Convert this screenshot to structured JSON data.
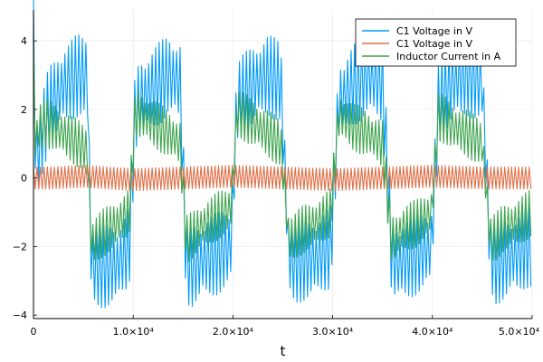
{
  "chart_data": {
    "type": "line",
    "title": "",
    "xlabel": "t",
    "ylabel": "",
    "xlim": [
      0,
      50000
    ],
    "ylim": [
      -4.1,
      4.9
    ],
    "xticks": [
      0,
      10000,
      20000,
      30000,
      40000,
      50000
    ],
    "xtick_labels": [
      "0",
      "1.0×10⁴",
      "2.0×10⁴",
      "3.0×10⁴",
      "4.0×10⁴",
      "5.0×10⁴"
    ],
    "yticks": [
      -4,
      -2,
      0,
      2,
      4
    ],
    "ytick_labels": [
      "−4",
      "−2",
      "0",
      "2",
      "4"
    ],
    "grid": true,
    "legend_position": "top-right",
    "series": [
      {
        "name": "C1 Voltage in V",
        "color": "#009af9",
        "oscillation_amplitude": 1.2,
        "x": [
          0,
          200,
          500,
          1500,
          3000,
          4500,
          5400,
          5800,
          6200,
          7000,
          8500,
          9600,
          10200,
          10800,
          12000,
          13500,
          14700,
          15300,
          15800,
          16500,
          17500,
          18500,
          19800,
          20400,
          21000,
          22000,
          23500,
          24800,
          25600,
          26200,
          27000,
          28500,
          29800,
          30600,
          31200,
          32000,
          33500,
          35000,
          35900,
          36400,
          37000,
          38500,
          39900,
          40600,
          41200,
          42000,
          43500,
          45000,
          45800,
          46400,
          47000,
          48500,
          49500,
          50000
        ],
        "y": [
          4.5,
          0.6,
          0.8,
          2.0,
          2.7,
          3.0,
          3.0,
          -2.5,
          -2.6,
          -2.6,
          -2.5,
          -2.0,
          2.0,
          2.3,
          2.6,
          3.0,
          2.8,
          -2.4,
          -2.6,
          -2.5,
          -2.3,
          -2.2,
          -2.0,
          2.2,
          2.4,
          2.7,
          3.0,
          2.8,
          -2.3,
          -2.5,
          -2.4,
          -2.3,
          -2.0,
          2.2,
          2.4,
          2.7,
          3.0,
          2.8,
          -2.2,
          -2.5,
          -2.4,
          -2.2,
          -2.0,
          2.2,
          2.5,
          2.8,
          3.0,
          2.8,
          -2.2,
          -2.5,
          -2.4,
          -2.2,
          -2.0,
          -2.0
        ]
      },
      {
        "name": "C1 Voltage in V",
        "color": "#e26f46",
        "oscillation_amplitude": 0.32,
        "x": [
          0,
          2000,
          5000,
          10000,
          15000,
          20000,
          25000,
          30000,
          35000,
          40000,
          45000,
          50000
        ],
        "y": [
          0.0,
          0.0,
          0.05,
          -0.05,
          0.0,
          0.05,
          0.0,
          -0.05,
          0.0,
          0.05,
          0.0,
          0.0
        ]
      },
      {
        "name": "Inductor Current in A",
        "color": "#3da44d",
        "oscillation_amplitude": 0.7,
        "x": [
          0,
          200,
          500,
          1500,
          3000,
          4500,
          5400,
          5800,
          6200,
          7000,
          8500,
          9600,
          10200,
          10800,
          12000,
          13500,
          14700,
          15300,
          15800,
          16500,
          17500,
          18500,
          19800,
          20400,
          21000,
          22000,
          23500,
          24800,
          25600,
          26200,
          27000,
          28500,
          29800,
          30600,
          31200,
          32000,
          33500,
          35000,
          35900,
          36400,
          37000,
          38500,
          39900,
          40600,
          41200,
          42000,
          43500,
          45000,
          45800,
          46400,
          47000,
          48500,
          49500,
          50000
        ],
        "y": [
          3.8,
          0.8,
          1.5,
          1.6,
          1.3,
          1.0,
          0.8,
          -1.9,
          -1.8,
          -1.6,
          -1.3,
          -1.0,
          1.9,
          1.8,
          1.6,
          1.3,
          1.0,
          -1.8,
          -1.7,
          -1.5,
          -1.3,
          -1.1,
          -0.9,
          1.9,
          1.8,
          1.6,
          1.3,
          1.0,
          -1.8,
          -1.7,
          -1.5,
          -1.3,
          -1.0,
          1.8,
          1.7,
          1.5,
          1.3,
          1.0,
          -1.8,
          -1.7,
          -1.5,
          -1.3,
          -1.0,
          1.8,
          1.7,
          1.5,
          1.3,
          1.0,
          -1.8,
          -1.7,
          -1.5,
          -1.3,
          -1.1,
          -1.0
        ]
      }
    ]
  }
}
